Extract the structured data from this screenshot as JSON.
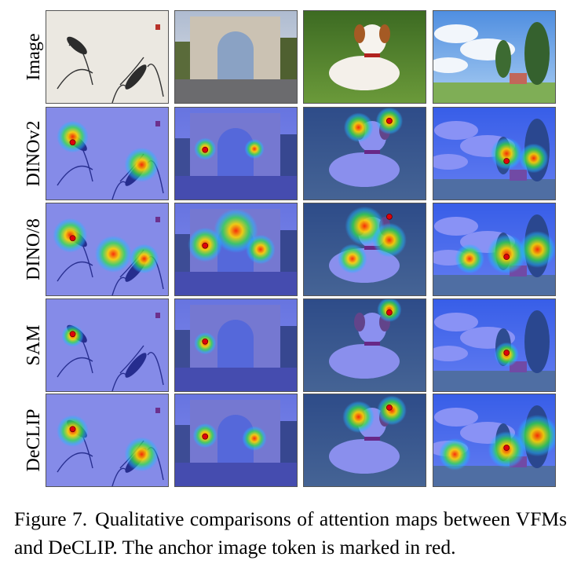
{
  "figure": {
    "rows": [
      "Image",
      "DINOv2",
      "DINO/8",
      "SAM",
      "DeCLIP"
    ],
    "caption": {
      "label": "Figure 7.",
      "text": "Qualitative comparisons of attention maps between VFMs and DeCLIP. The anchor image token is marked in red."
    }
  }
}
